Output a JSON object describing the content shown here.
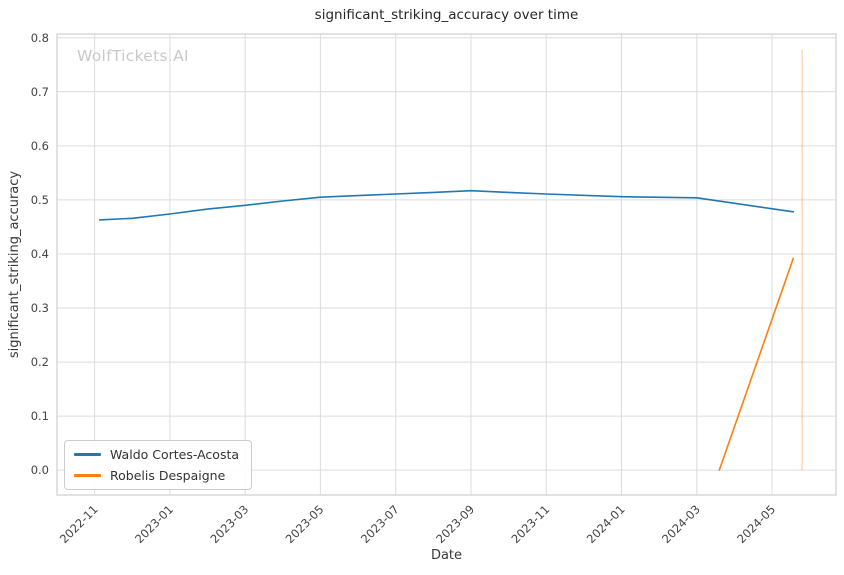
{
  "watermark": "WolfTickets.AI",
  "chart_data": {
    "type": "line",
    "title": "significant_striking_accuracy over time",
    "xlabel": "Date",
    "ylabel": "significant_striking_accuracy",
    "grid": true,
    "legend_position": "lower left",
    "x_ticks": [
      "2022-11",
      "2023-01",
      "2023-03",
      "2023-05",
      "2023-07",
      "2023-09",
      "2023-11",
      "2024-01",
      "2024-03",
      "2024-05"
    ],
    "y_ticks": [
      0.0,
      0.1,
      0.2,
      0.3,
      0.4,
      0.5,
      0.6,
      0.7,
      0.8
    ],
    "xlim": [
      "2022-10-01",
      "2024-06-22"
    ],
    "ylim": [
      -0.046,
      0.807
    ],
    "series": [
      {
        "name": "Waldo Cortes-Acosta",
        "color": "#1f77b4",
        "points": [
          [
            "2022-11-05",
            0.463
          ],
          [
            "2022-12-01",
            0.466
          ],
          [
            "2023-01-01",
            0.474
          ],
          [
            "2023-02-01",
            0.483
          ],
          [
            "2023-03-01",
            0.49
          ],
          [
            "2023-04-01",
            0.498
          ],
          [
            "2023-05-01",
            0.505
          ],
          [
            "2023-06-01",
            0.508
          ],
          [
            "2023-07-01",
            0.511
          ],
          [
            "2023-08-01",
            0.514
          ],
          [
            "2023-09-01",
            0.517
          ],
          [
            "2023-10-01",
            0.514
          ],
          [
            "2023-11-01",
            0.511
          ],
          [
            "2024-01-01",
            0.506
          ],
          [
            "2024-03-01",
            0.504
          ],
          [
            "2024-05-18",
            0.478
          ]
        ]
      },
      {
        "name": "Robelis Despaigne",
        "color": "#ff7f0e",
        "points": [
          [
            "2024-03-19",
            0.0
          ],
          [
            "2024-05-18",
            0.392
          ]
        ]
      }
    ],
    "annotations": [
      {
        "type": "vline",
        "x": "2024-05-25",
        "y0": 0.0,
        "y1": 0.778,
        "color": "#ff7f0e",
        "opacity": 0.4
      }
    ]
  },
  "legend": {
    "items": [
      {
        "label": "Waldo Cortes-Acosta",
        "color": "#1f77b4"
      },
      {
        "label": "Robelis Despaigne",
        "color": "#ff7f0e"
      }
    ]
  }
}
